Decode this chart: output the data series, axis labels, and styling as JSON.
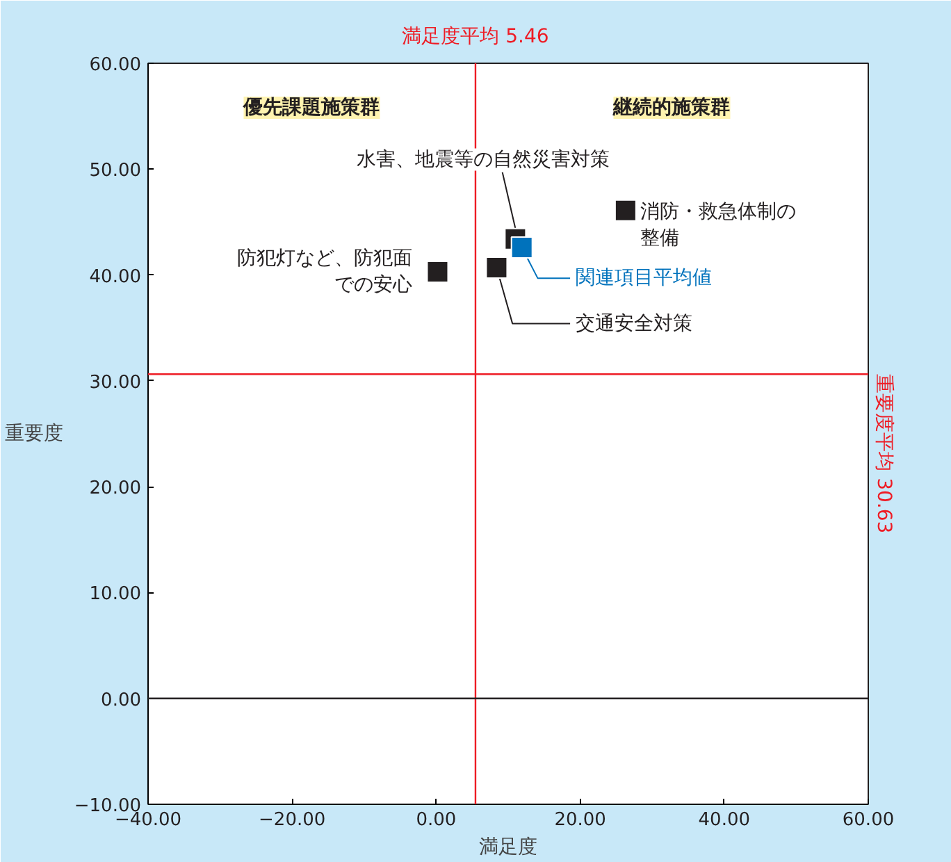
{
  "chart_data": {
    "type": "scatter",
    "xlabel": "満足度",
    "ylabel": "重要度",
    "xlim": [
      -40,
      60
    ],
    "ylim": [
      -10,
      60
    ],
    "xticks": [
      {
        "value": -40,
        "label": "−40.00"
      },
      {
        "value": -20,
        "label": "−20.00"
      },
      {
        "value": 0,
        "label": "0.00"
      },
      {
        "value": 20,
        "label": "20.00"
      },
      {
        "value": 40,
        "label": "40.00"
      },
      {
        "value": 60,
        "label": "60.00"
      }
    ],
    "yticks": [
      {
        "value": -10,
        "label": "−10.00"
      },
      {
        "value": 0,
        "label": "0.00"
      },
      {
        "value": 10,
        "label": "10.00"
      },
      {
        "value": 20,
        "label": "20.00"
      },
      {
        "value": 30,
        "label": "30.00"
      },
      {
        "value": 40,
        "label": "40.00"
      },
      {
        "value": 50,
        "label": "50.00"
      },
      {
        "value": 60,
        "label": "60.00"
      }
    ],
    "grid": false,
    "marker": "square",
    "series": [
      {
        "name": "防犯灯など、防犯面での安心",
        "color": "#231f20",
        "x": [
          0.2
        ],
        "values": [
          40.3
        ]
      },
      {
        "name": "水害、地震等の自然災害対策",
        "color": "#231f20",
        "x": [
          11.0
        ],
        "values": [
          43.4
        ]
      },
      {
        "name": "交通安全対策",
        "color": "#231f20",
        "x": [
          8.4
        ],
        "values": [
          40.7
        ]
      },
      {
        "name": "消防・救急体制の整備",
        "color": "#231f20",
        "x": [
          26.3
        ],
        "values": [
          46.1
        ]
      },
      {
        "name": "関連項目平均値",
        "color": "#0072bc",
        "x": [
          11.9
        ],
        "values": [
          42.6
        ]
      }
    ],
    "ref_lines": [
      {
        "axis": "x",
        "value": 5.46,
        "label": "満足度平均 5.46",
        "color": "#ee1c25"
      },
      {
        "axis": "y",
        "value": 30.63,
        "label": "重要度平均 30.63",
        "color": "#ee1c25"
      },
      {
        "axis": "y",
        "value": 0,
        "label": null,
        "color": "#231f20"
      }
    ],
    "annotations": [
      "優先課題施策群",
      "継続的施策群"
    ]
  }
}
